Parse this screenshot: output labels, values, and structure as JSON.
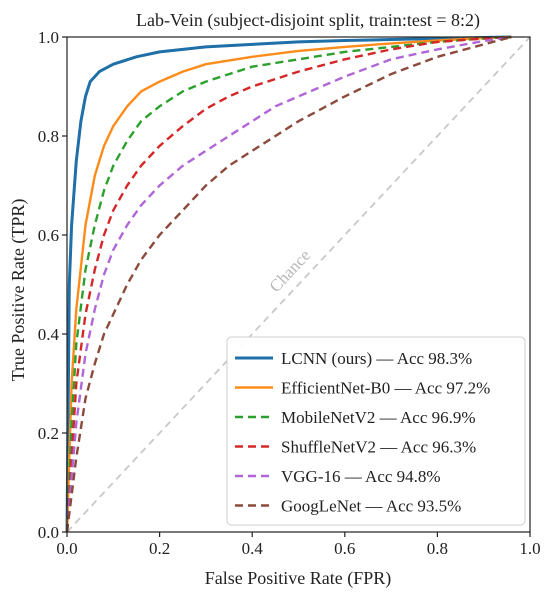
{
  "chart_data": {
    "type": "line",
    "title": "Lab-Vein (subject-disjoint split, train:test = 8:2)",
    "xlabel": "False Positive Rate (FPR)",
    "ylabel": "True Positive Rate (TPR)",
    "xlim": [
      0,
      1
    ],
    "ylim": [
      0,
      1
    ],
    "xticks": [
      "0.0",
      "0.2",
      "0.4",
      "0.6",
      "0.8",
      "1.0"
    ],
    "yticks": [
      "0.0",
      "0.2",
      "0.4",
      "0.6",
      "0.8",
      "1.0"
    ],
    "grid": false,
    "legend_position": "lower-right",
    "reference_line": {
      "label": "Chance",
      "x": [
        0,
        1
      ],
      "y": [
        0,
        1
      ],
      "color": "#c8c8c8"
    },
    "series": [
      {
        "name": "LCNN (ours) — Acc 98.3%",
        "color": "#1f6fa8",
        "style": "solid",
        "x": [
          0,
          0.005,
          0.01,
          0.02,
          0.03,
          0.04,
          0.05,
          0.07,
          0.1,
          0.15,
          0.2,
          0.25,
          0.3,
          0.4,
          0.5,
          0.6,
          0.7,
          0.8,
          0.9,
          0.96
        ],
        "y": [
          0,
          0.5,
          0.62,
          0.75,
          0.83,
          0.88,
          0.91,
          0.93,
          0.945,
          0.96,
          0.97,
          0.975,
          0.98,
          0.985,
          0.99,
          0.993,
          0.995,
          0.997,
          0.999,
          1.0
        ]
      },
      {
        "name": "EfficientNet-B0 — Acc 97.2%",
        "color": "#ff8c1a",
        "style": "solid",
        "x": [
          0,
          0.01,
          0.02,
          0.04,
          0.06,
          0.08,
          0.1,
          0.13,
          0.16,
          0.2,
          0.25,
          0.3,
          0.4,
          0.5,
          0.6,
          0.7,
          0.8,
          0.9,
          0.96
        ],
        "y": [
          0,
          0.3,
          0.45,
          0.62,
          0.72,
          0.78,
          0.82,
          0.86,
          0.89,
          0.91,
          0.93,
          0.945,
          0.96,
          0.972,
          0.98,
          0.987,
          0.993,
          0.998,
          1.0
        ]
      },
      {
        "name": "MobileNetV2 — Acc 96.9%",
        "color": "#2ca02c",
        "style": "dashed",
        "x": [
          0,
          0.01,
          0.02,
          0.04,
          0.06,
          0.08,
          0.1,
          0.13,
          0.16,
          0.2,
          0.25,
          0.3,
          0.35,
          0.4,
          0.5,
          0.6,
          0.7,
          0.8,
          0.9,
          0.96
        ],
        "y": [
          0,
          0.22,
          0.38,
          0.53,
          0.62,
          0.69,
          0.74,
          0.79,
          0.83,
          0.86,
          0.89,
          0.91,
          0.925,
          0.94,
          0.955,
          0.97,
          0.98,
          0.99,
          0.997,
          1.0
        ]
      },
      {
        "name": "ShuffleNetV2 — Acc 96.3%",
        "color": "#d62728",
        "style": "dashed",
        "x": [
          0,
          0.02,
          0.04,
          0.06,
          0.08,
          0.1,
          0.13,
          0.16,
          0.2,
          0.25,
          0.3,
          0.35,
          0.4,
          0.5,
          0.6,
          0.7,
          0.8,
          0.9,
          0.96
        ],
        "y": [
          0,
          0.3,
          0.44,
          0.53,
          0.6,
          0.65,
          0.7,
          0.74,
          0.78,
          0.82,
          0.855,
          0.88,
          0.9,
          0.93,
          0.955,
          0.975,
          0.99,
          0.997,
          1.0
        ]
      },
      {
        "name": "VGG-16 — Acc 94.8%",
        "color": "#b066d6",
        "style": "dashed",
        "x": [
          0,
          0.02,
          0.04,
          0.06,
          0.08,
          0.1,
          0.13,
          0.16,
          0.2,
          0.25,
          0.3,
          0.35,
          0.4,
          0.45,
          0.5,
          0.6,
          0.7,
          0.8,
          0.9,
          0.96
        ],
        "y": [
          0,
          0.22,
          0.36,
          0.45,
          0.52,
          0.57,
          0.62,
          0.66,
          0.7,
          0.74,
          0.77,
          0.8,
          0.83,
          0.86,
          0.88,
          0.92,
          0.955,
          0.975,
          0.992,
          1.0
        ]
      },
      {
        "name": "GoogLeNet — Acc 93.5%",
        "color": "#8c4a3c",
        "style": "dashed",
        "x": [
          0,
          0.02,
          0.04,
          0.06,
          0.08,
          0.1,
          0.13,
          0.16,
          0.2,
          0.25,
          0.3,
          0.35,
          0.4,
          0.45,
          0.5,
          0.6,
          0.7,
          0.8,
          0.9,
          0.96
        ],
        "y": [
          0,
          0.15,
          0.27,
          0.34,
          0.4,
          0.44,
          0.5,
          0.55,
          0.6,
          0.65,
          0.7,
          0.74,
          0.77,
          0.8,
          0.83,
          0.88,
          0.925,
          0.96,
          0.985,
          1.0
        ]
      }
    ]
  }
}
